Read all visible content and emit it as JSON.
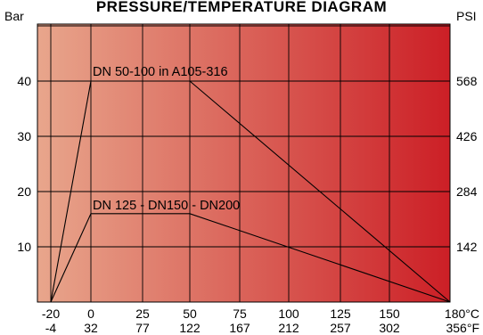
{
  "chart_data": {
    "type": "line",
    "title": "PRESSURE/TEMPERATURE DIAGRAM",
    "y_left_unit": "Bar",
    "y_right_unit": "PSI",
    "x_unit_celsius": "180°C",
    "x_unit_fahrenheit": "356°F",
    "xlim": [
      -20,
      180
    ],
    "ylim": [
      0,
      52
    ],
    "grid": true,
    "background_gradient": [
      "#e8a68c",
      "#cc1f26"
    ],
    "x_ticks_c": [
      {
        "value": -20,
        "label": "-20"
      },
      {
        "value": 0,
        "label": "0"
      },
      {
        "value": 25,
        "label": "25"
      },
      {
        "value": 50,
        "label": "50"
      },
      {
        "value": 75,
        "label": "75"
      },
      {
        "value": 100,
        "label": "100"
      },
      {
        "value": 125,
        "label": "125"
      },
      {
        "value": 150,
        "label": "150"
      },
      {
        "value": 180,
        "label": "180°C"
      }
    ],
    "x_ticks_f": [
      {
        "value": -20,
        "label": "-4"
      },
      {
        "value": 0,
        "label": "32"
      },
      {
        "value": 25,
        "label": "77"
      },
      {
        "value": 50,
        "label": "122"
      },
      {
        "value": 75,
        "label": "167"
      },
      {
        "value": 100,
        "label": "212"
      },
      {
        "value": 125,
        "label": "257"
      },
      {
        "value": 150,
        "label": "302"
      },
      {
        "value": 180,
        "label": "356°F"
      }
    ],
    "y_ticks_left": [
      {
        "value": 10,
        "label": "10"
      },
      {
        "value": 20,
        "label": "20"
      },
      {
        "value": 30,
        "label": "30"
      },
      {
        "value": 40,
        "label": "40"
      }
    ],
    "y_ticks_right": [
      {
        "value": 10,
        "label": "142"
      },
      {
        "value": 20,
        "label": "284"
      },
      {
        "value": 30,
        "label": "426"
      },
      {
        "value": 40,
        "label": "568"
      }
    ],
    "x_grid": [
      -20,
      0,
      25,
      50,
      75,
      100,
      125,
      150,
      180
    ],
    "y_grid": [
      0,
      10,
      20,
      30,
      40,
      50
    ],
    "series": [
      {
        "name": "DN 50-100 in A105-316",
        "x": [
          -20,
          0,
          50,
          180
        ],
        "y": [
          0,
          40,
          40,
          0
        ]
      },
      {
        "name": "DN 125 - DN150 - DN200",
        "x": [
          -20,
          0,
          50,
          180
        ],
        "y": [
          0,
          16,
          16,
          0
        ]
      }
    ]
  }
}
